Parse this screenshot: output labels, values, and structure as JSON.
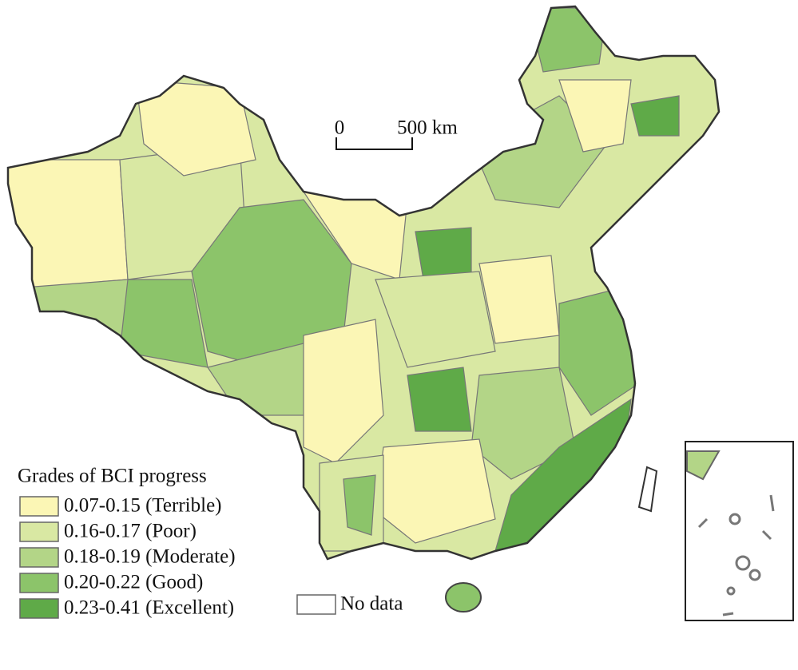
{
  "scale_bar": {
    "labels": [
      "0",
      "500 km"
    ]
  },
  "legend": {
    "title": "Grades of BCI progress",
    "items": [
      {
        "label": "0.07-0.15 (Terrible)",
        "color": "#fbf6b5"
      },
      {
        "label": "0.16-0.17 (Poor)",
        "color": "#d9e8a3"
      },
      {
        "label": "0.18-0.19 (Moderate)",
        "color": "#b3d587"
      },
      {
        "label": "0.20-0.22 (Good)",
        "color": "#8cc46a"
      },
      {
        "label": "0.23-0.41 (Excellent)",
        "color": "#5faa48"
      }
    ],
    "no_data": {
      "label": "No data",
      "color": "#ffffff"
    }
  }
}
